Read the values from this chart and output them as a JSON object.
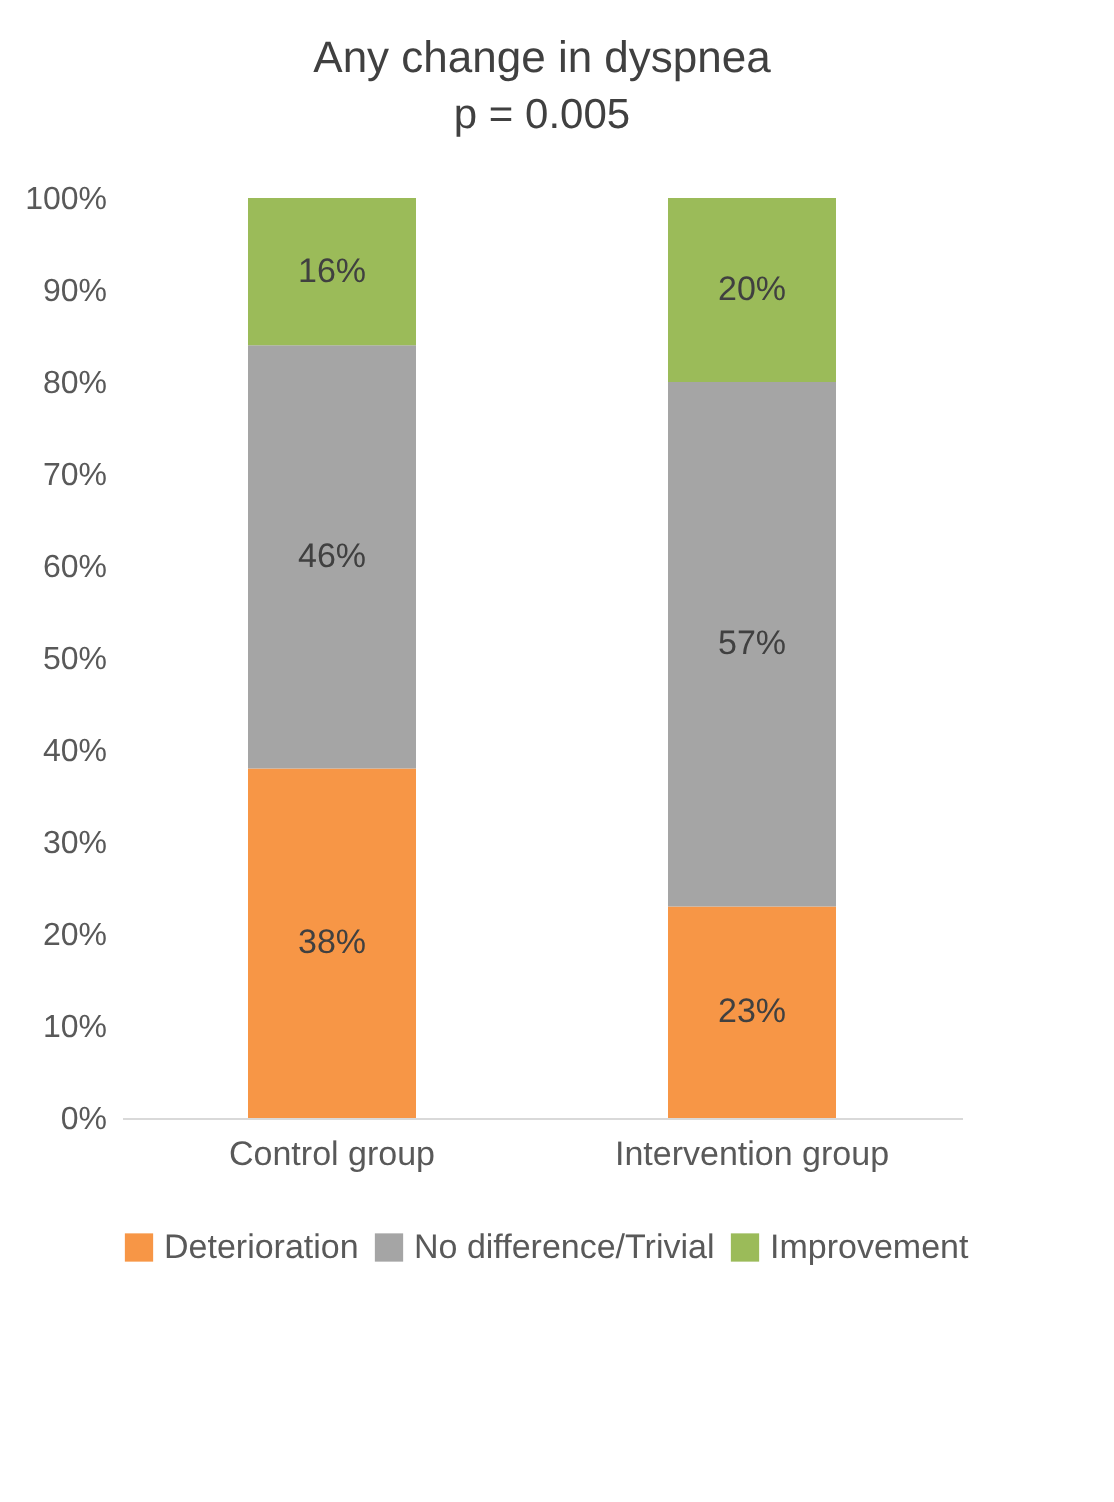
{
  "chart_data": {
    "type": "bar",
    "title": "Any change in dyspnea",
    "subtitle": "p = 0.005",
    "categories": [
      "Control group",
      "Intervention group"
    ],
    "stacked": true,
    "series": [
      {
        "name": "Deterioration",
        "color": "#f79646",
        "values": [
          38,
          23
        ],
        "value_labels": [
          "38%",
          "23%"
        ]
      },
      {
        "name": "No difference/Trivial",
        "color": "#a5a5a5",
        "values": [
          46,
          57
        ],
        "value_labels": [
          "46%",
          "57%"
        ]
      },
      {
        "name": "Improvement",
        "color": "#9bbb59",
        "values": [
          16,
          20
        ],
        "value_labels": [
          "16%",
          "20%"
        ]
      }
    ],
    "ylim": [
      0,
      100
    ],
    "yticks": [
      {
        "value": 0,
        "label": "0%"
      },
      {
        "value": 10,
        "label": "10%"
      },
      {
        "value": 20,
        "label": "20%"
      },
      {
        "value": 30,
        "label": "30%"
      },
      {
        "value": 40,
        "label": "40%"
      },
      {
        "value": 50,
        "label": "50%"
      },
      {
        "value": 60,
        "label": "60%"
      },
      {
        "value": 70,
        "label": "70%"
      },
      {
        "value": 80,
        "label": "80%"
      },
      {
        "value": 90,
        "label": "90%"
      },
      {
        "value": 100,
        "label": "100%"
      }
    ],
    "grid": false,
    "legend": "bottom"
  }
}
